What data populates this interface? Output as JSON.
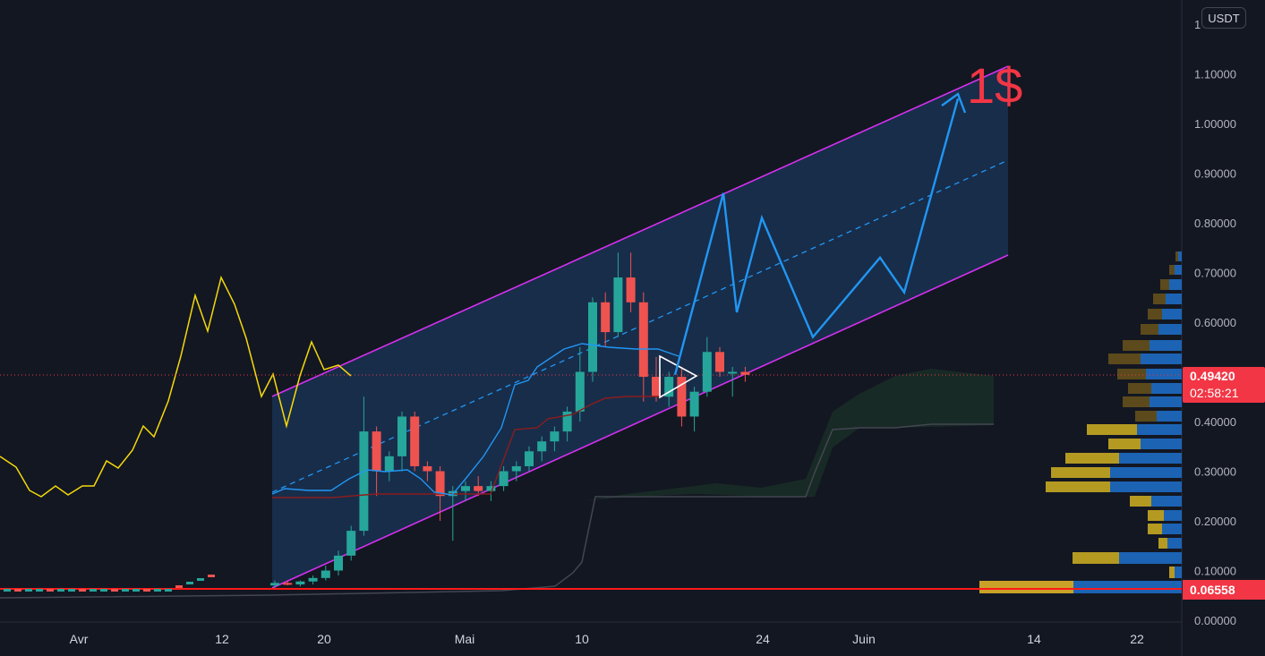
{
  "currency": "USDT",
  "target_label": "1$",
  "last_price": "0.49420",
  "countdown": "02:58:21",
  "line_price": "0.06558",
  "top_tick_partial": "1",
  "colors": {
    "background": "#131722",
    "up": "#26a69a",
    "down": "#ef5350",
    "channel": "#d630f0",
    "projection": "#2196f3",
    "oscillator": "#f5d90a",
    "price_line": "#f23645"
  },
  "chart_data": {
    "type": "candlestick",
    "y_axis": {
      "range": [
        0,
        1.2
      ],
      "ticks": [
        "1.10000",
        "1.00000",
        "0.90000",
        "0.80000",
        "0.70000",
        "0.60000",
        "0.50000",
        "0.40000",
        "0.30000",
        "0.20000",
        "0.10000",
        "0.00000"
      ]
    },
    "x_axis": {
      "ticks": [
        "Avr",
        "12",
        "20",
        "Mai",
        "10",
        "24",
        "Juin",
        "14",
        "22"
      ]
    },
    "candles_ohlc": [
      [
        0.07,
        0.08,
        0.065,
        0.075
      ],
      [
        0.075,
        0.08,
        0.07,
        0.072
      ],
      [
        0.072,
        0.08,
        0.068,
        0.078
      ],
      [
        0.078,
        0.09,
        0.072,
        0.085
      ],
      [
        0.085,
        0.11,
        0.08,
        0.1
      ],
      [
        0.1,
        0.14,
        0.09,
        0.13
      ],
      [
        0.13,
        0.19,
        0.12,
        0.18
      ],
      [
        0.18,
        0.45,
        0.17,
        0.38
      ],
      [
        0.38,
        0.39,
        0.25,
        0.3
      ],
      [
        0.3,
        0.34,
        0.28,
        0.33
      ],
      [
        0.33,
        0.42,
        0.3,
        0.41
      ],
      [
        0.41,
        0.42,
        0.3,
        0.31
      ],
      [
        0.31,
        0.32,
        0.28,
        0.3
      ],
      [
        0.3,
        0.31,
        0.2,
        0.25
      ],
      [
        0.25,
        0.27,
        0.16,
        0.26
      ],
      [
        0.26,
        0.28,
        0.24,
        0.27
      ],
      [
        0.27,
        0.29,
        0.25,
        0.26
      ],
      [
        0.26,
        0.28,
        0.24,
        0.27
      ],
      [
        0.27,
        0.31,
        0.26,
        0.3
      ],
      [
        0.3,
        0.32,
        0.28,
        0.31
      ],
      [
        0.31,
        0.35,
        0.3,
        0.34
      ],
      [
        0.34,
        0.37,
        0.32,
        0.36
      ],
      [
        0.36,
        0.39,
        0.34,
        0.38
      ],
      [
        0.38,
        0.43,
        0.36,
        0.42
      ],
      [
        0.42,
        0.55,
        0.4,
        0.5
      ],
      [
        0.5,
        0.65,
        0.48,
        0.64
      ],
      [
        0.64,
        0.66,
        0.55,
        0.58
      ],
      [
        0.58,
        0.74,
        0.57,
        0.69
      ],
      [
        0.69,
        0.74,
        0.62,
        0.64
      ],
      [
        0.64,
        0.66,
        0.44,
        0.49
      ],
      [
        0.49,
        0.53,
        0.44,
        0.45
      ],
      [
        0.45,
        0.5,
        0.43,
        0.49
      ],
      [
        0.49,
        0.51,
        0.39,
        0.41
      ],
      [
        0.41,
        0.47,
        0.38,
        0.46
      ],
      [
        0.46,
        0.57,
        0.45,
        0.54
      ],
      [
        0.54,
        0.55,
        0.49,
        0.5
      ],
      [
        0.5,
        0.51,
        0.45,
        0.5
      ],
      [
        0.5,
        0.51,
        0.48,
        0.494
      ]
    ],
    "projection_path": [
      0.494,
      0.86,
      0.62,
      0.81,
      0.57,
      0.73,
      0.66,
      1.05
    ]
  }
}
